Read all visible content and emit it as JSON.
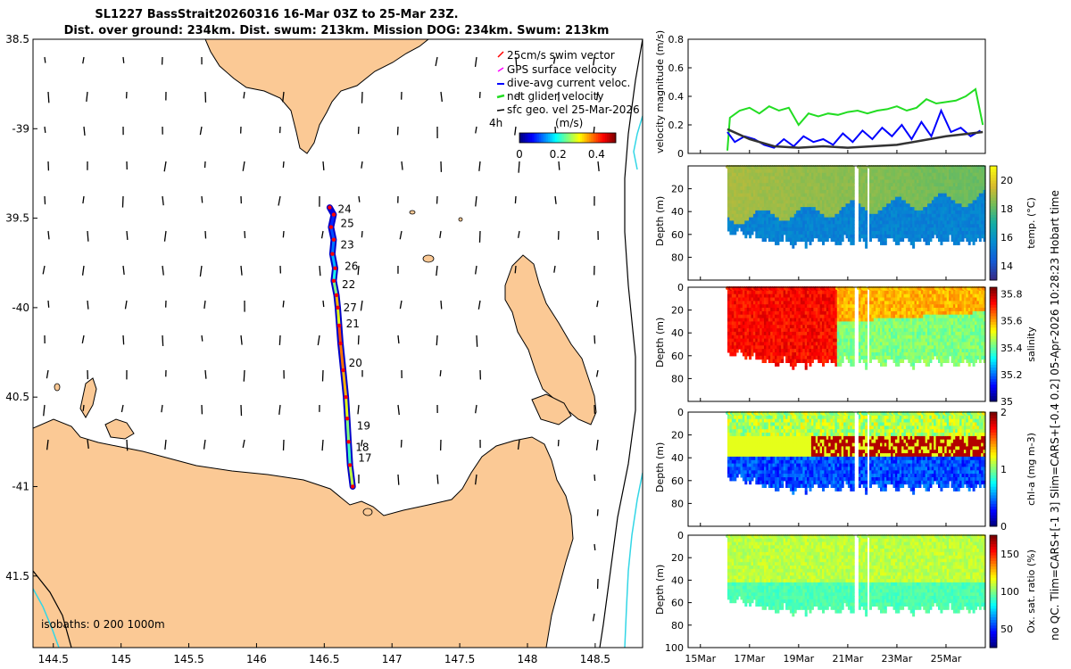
{
  "title": {
    "line1": "SL1227 BassStrait20260316 16-Mar 03Z to 25-Mar 23Z.",
    "line2": "Dist. over ground: 234km. Dist. swum: 213km. Mission DOG: 234km. Swum: 213km"
  },
  "side_label": "no QC. Tlim=CARS+[-1 3] Slim=CARS+[-0.4 0.2] 05-Apr-2026 10:28:23 Hobart time",
  "colors": {
    "land": "#fbc995",
    "coast": "#000000",
    "isobath_1000": "#33d6e6",
    "track_outline": "#0000c8",
    "swim_vector": "#ff0000",
    "gps_velocity": "#ff00ff",
    "dive_avg": "#0000ff",
    "net_glider": "#22dd22",
    "sfc_geo": "#000000"
  },
  "chart_data": [
    {
      "type": "map",
      "name": "glider track map",
      "xlim": [
        144.35,
        148.85
      ],
      "ylim": [
        -41.9,
        -38.5
      ],
      "xticks": [
        144.5,
        145,
        145.5,
        146,
        146.5,
        147,
        147.5,
        148,
        148.5
      ],
      "xtick_labels": [
        "144.5",
        "145",
        "145.5",
        "146",
        "146.5",
        "147",
        "147.5",
        "148",
        "148.5"
      ],
      "yticks": [
        -38.5,
        -39,
        -39.5,
        -40,
        -40.5,
        -41,
        -41.5
      ],
      "ytick_labels": [
        "38.5",
        "-39",
        "39.5",
        "-40",
        "40.5",
        "-41",
        "41.5"
      ],
      "legend": [
        {
          "label": "25cm/s swim vector",
          "color": "#ff0000"
        },
        {
          "label": "GPS surface velocity",
          "color": "#ff00ff"
        },
        {
          "label": "dive-avg current veloc.",
          "color": "#0000ff"
        },
        {
          "label": "net glider velocity",
          "color": "#22dd22"
        },
        {
          "label": "sfc geo. vel 25-Mar-2026",
          "color": "#000000"
        }
      ],
      "legend_extra": "4h",
      "colorbar": {
        "label": "(m/s)",
        "ticks": [
          "0",
          "0.2",
          "0.4"
        ],
        "range": [
          0,
          0.5
        ]
      },
      "isobath_label": "isobaths: 0   200  1000m",
      "track": [
        {
          "lon": 146.54,
          "lat": -39.44,
          "speed": 0.05
        },
        {
          "lon": 146.57,
          "lat": -39.48,
          "speed": 0.08
        },
        {
          "lon": 146.55,
          "lat": -39.55,
          "speed": 0.1
        },
        {
          "lon": 146.57,
          "lat": -39.62,
          "speed": 0.12
        },
        {
          "lon": 146.56,
          "lat": -39.7,
          "speed": 0.15
        },
        {
          "lon": 146.58,
          "lat": -39.78,
          "speed": 0.2
        },
        {
          "lon": 146.57,
          "lat": -39.85,
          "speed": 0.25
        },
        {
          "lon": 146.59,
          "lat": -39.93,
          "speed": 0.35
        },
        {
          "lon": 146.6,
          "lat": -40.0,
          "speed": 0.3
        },
        {
          "lon": 146.61,
          "lat": -40.1,
          "speed": 0.4
        },
        {
          "lon": 146.62,
          "lat": -40.2,
          "speed": 0.38
        },
        {
          "lon": 146.64,
          "lat": -40.35,
          "speed": 0.35
        },
        {
          "lon": 146.66,
          "lat": -40.5,
          "speed": 0.3
        },
        {
          "lon": 146.67,
          "lat": -40.62,
          "speed": 0.25
        },
        {
          "lon": 146.68,
          "lat": -40.75,
          "speed": 0.22
        },
        {
          "lon": 146.69,
          "lat": -40.88,
          "speed": 0.28
        },
        {
          "lon": 146.71,
          "lat": -41.0,
          "speed": 0.2
        }
      ],
      "day_labels": [
        {
          "text": "24",
          "lon": 146.6,
          "lat": -39.45
        },
        {
          "text": "25",
          "lon": 146.62,
          "lat": -39.53
        },
        {
          "text": "23",
          "lon": 146.62,
          "lat": -39.65
        },
        {
          "text": "26",
          "lon": 146.65,
          "lat": -39.77
        },
        {
          "text": "22",
          "lon": 146.63,
          "lat": -39.87
        },
        {
          "text": "27",
          "lon": 146.64,
          "lat": -40.0
        },
        {
          "text": "21",
          "lon": 146.66,
          "lat": -40.09
        },
        {
          "text": "20",
          "lon": 146.68,
          "lat": -40.31
        },
        {
          "text": "19",
          "lon": 146.74,
          "lat": -40.66
        },
        {
          "text": "18",
          "lon": 146.73,
          "lat": -40.78
        },
        {
          "text": "17",
          "lon": 146.75,
          "lat": -40.84
        }
      ]
    },
    {
      "type": "line",
      "name": "velocity magnitude",
      "ylabel": "velocity magnitude (m/s)",
      "ylim": [
        0,
        0.8
      ],
      "yticks": [
        0,
        0.2,
        0.4,
        0.6,
        0.8
      ],
      "ytick_labels": [
        "0",
        "0.2",
        "0.4",
        "0.6",
        "0.8"
      ],
      "xlim": [
        14.5,
        26.6
      ],
      "series": [
        {
          "name": "net glider velocity",
          "color": "#22dd22",
          "x": [
            16.1,
            16.2,
            16.6,
            17.0,
            17.4,
            17.8,
            18.2,
            18.6,
            19.0,
            19.4,
            19.8,
            20.2,
            20.6,
            21.0,
            21.4,
            21.8,
            22.2,
            22.6,
            23.0,
            23.4,
            23.8,
            24.2,
            24.6,
            25.0,
            25.4,
            25.8,
            26.2,
            26.5
          ],
          "y": [
            0.02,
            0.25,
            0.3,
            0.32,
            0.28,
            0.33,
            0.3,
            0.32,
            0.2,
            0.28,
            0.26,
            0.28,
            0.27,
            0.29,
            0.3,
            0.28,
            0.3,
            0.31,
            0.33,
            0.3,
            0.32,
            0.38,
            0.35,
            0.36,
            0.37,
            0.4,
            0.45,
            0.2
          ]
        },
        {
          "name": "dive-avg current veloc.",
          "color": "#0000ff",
          "x": [
            16.1,
            16.4,
            16.8,
            17.2,
            17.6,
            18.0,
            18.4,
            18.8,
            19.2,
            19.6,
            20.0,
            20.4,
            20.8,
            21.2,
            21.6,
            22.0,
            22.4,
            22.8,
            23.2,
            23.6,
            24.0,
            24.4,
            24.8,
            25.2,
            25.6,
            26.0,
            26.4
          ],
          "y": [
            0.15,
            0.08,
            0.12,
            0.1,
            0.06,
            0.04,
            0.1,
            0.05,
            0.12,
            0.08,
            0.1,
            0.06,
            0.14,
            0.08,
            0.16,
            0.1,
            0.18,
            0.12,
            0.2,
            0.1,
            0.22,
            0.12,
            0.3,
            0.15,
            0.18,
            0.12,
            0.16
          ]
        },
        {
          "name": "sfc geo. vel",
          "color": "#333333",
          "x": [
            16.1,
            17.0,
            18.0,
            19.0,
            20.0,
            21.0,
            22.0,
            23.0,
            24.0,
            25.0,
            26.0,
            26.5
          ],
          "y": [
            0.17,
            0.1,
            0.05,
            0.04,
            0.05,
            0.04,
            0.05,
            0.06,
            0.09,
            0.12,
            0.14,
            0.15
          ]
        }
      ]
    },
    {
      "type": "heatmap",
      "name": "temperature section",
      "ylabel": "Depth (m)",
      "clabel": "temp. (°C)",
      "ylim": [
        0,
        100
      ],
      "yticks": [
        0,
        20,
        40,
        60,
        80,
        100
      ],
      "ytick_labels": [
        "",
        "20",
        "40",
        "60",
        "80",
        ""
      ],
      "clim": [
        13,
        21
      ],
      "cticks": [
        "14",
        "16",
        "18",
        "20"
      ],
      "xlim": [
        14.5,
        26.6
      ]
    },
    {
      "type": "heatmap",
      "name": "salinity section",
      "ylabel": "Depth (m)",
      "clabel": "salinity",
      "ylim": [
        0,
        100
      ],
      "yticks": [
        0,
        20,
        40,
        60,
        80,
        100
      ],
      "ytick_labels": [
        "0",
        "20",
        "40",
        "60",
        "80",
        ""
      ],
      "clim": [
        35.0,
        35.85
      ],
      "cticks": [
        "35",
        "35.2",
        "35.4",
        "35.6",
        "35.8"
      ],
      "xlim": [
        14.5,
        26.6
      ]
    },
    {
      "type": "heatmap",
      "name": "chlorophyll section",
      "ylabel": "Depth (m)",
      "clabel": "chl-a (mg m-3)",
      "ylim": [
        0,
        100
      ],
      "yticks": [
        0,
        20,
        40,
        60,
        80,
        100
      ],
      "ytick_labels": [
        "0",
        "20",
        "40",
        "60",
        "80",
        ""
      ],
      "clim": [
        0,
        2
      ],
      "cticks": [
        "0",
        "1",
        "2"
      ],
      "xlim": [
        14.5,
        26.6
      ]
    },
    {
      "type": "heatmap",
      "name": "oxygen saturation section",
      "ylabel": "Depth (m)",
      "clabel": "Ox. sat. ratio (%)",
      "ylim": [
        0,
        100
      ],
      "yticks": [
        0,
        20,
        40,
        60,
        80,
        100
      ],
      "ytick_labels": [
        "0",
        "20",
        "40",
        "60",
        "80",
        "100"
      ],
      "clim": [
        25,
        175
      ],
      "cticks": [
        "50",
        "100",
        "150"
      ],
      "xlim": [
        14.5,
        26.6
      ],
      "xticks": [
        15,
        17,
        19,
        21,
        23,
        25
      ],
      "xtick_labels": [
        "15Mar",
        "17Mar",
        "19Mar",
        "21Mar",
        "23Mar",
        "25Mar"
      ]
    }
  ]
}
